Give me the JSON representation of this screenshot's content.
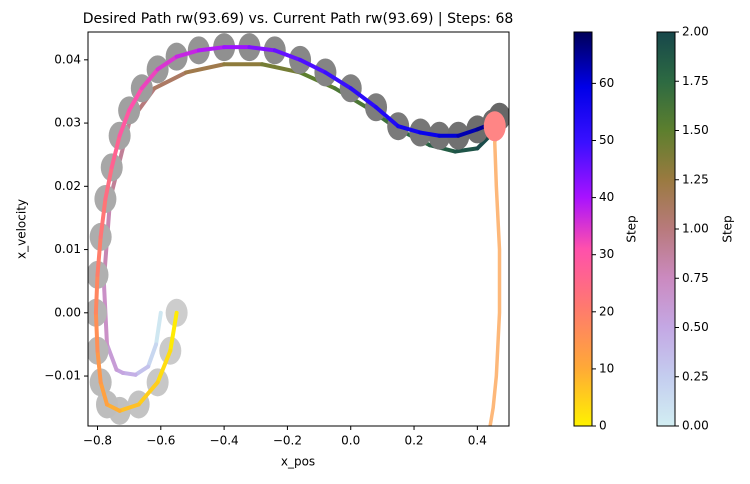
{
  "chart_data": {
    "type": "path",
    "title": "Desired Path rw(93.69) vs. Current Path rw(93.69) | Steps: 68",
    "x_label": "x_pos",
    "y_label": "x_velocity",
    "xlim": [
      -0.83,
      0.5
    ],
    "ylim": [
      -0.0179,
      0.0444
    ],
    "xticks": [
      {
        "value": -0.8,
        "label": "−0.8"
      },
      {
        "value": -0.6,
        "label": "−0.6"
      },
      {
        "value": -0.4,
        "label": "−0.4"
      },
      {
        "value": -0.2,
        "label": "−0.2"
      },
      {
        "value": 0.0,
        "label": "0.0"
      },
      {
        "value": 0.2,
        "label": "0.2"
      },
      {
        "value": 0.4,
        "label": "0.4"
      }
    ],
    "yticks": [
      {
        "value": -0.01,
        "label": "−0.01"
      },
      {
        "value": 0.0,
        "label": "0.00"
      },
      {
        "value": 0.01,
        "label": "0.01"
      },
      {
        "value": 0.02,
        "label": "0.02"
      },
      {
        "value": 0.03,
        "label": "0.03"
      },
      {
        "value": 0.04,
        "label": "0.04"
      }
    ],
    "series": [
      {
        "style": "colored-line",
        "colorbar": 1,
        "x": [
          -0.6,
          -0.615,
          -0.64,
          -0.68,
          -0.72,
          -0.74,
          -0.77,
          -0.78,
          -0.76,
          -0.7,
          -0.62,
          -0.52,
          -0.4,
          -0.28,
          -0.16,
          -0.05,
          0.05,
          0.15,
          0.25,
          0.33,
          0.4,
          0.47
        ],
        "y": [
          0.0,
          -0.005,
          -0.0085,
          -0.0098,
          -0.0095,
          -0.009,
          -0.005,
          0.005,
          0.018,
          0.03,
          0.0355,
          0.038,
          0.0393,
          0.0393,
          0.038,
          0.0355,
          0.0325,
          0.029,
          0.0265,
          0.0255,
          0.026,
          0.0295
        ],
        "c": [
          0,
          0.1,
          0.25,
          0.4,
          0.5,
          0.55,
          0.65,
          0.75,
          0.85,
          0.95,
          1.05,
          1.15,
          1.25,
          1.35,
          1.45,
          1.55,
          1.62,
          1.7,
          1.8,
          1.88,
          1.94,
          2
        ]
      },
      {
        "style": "circles",
        "colors": [
          "#cdcdcd",
          "#676767"
        ],
        "x": [
          -0.55,
          -0.57,
          -0.61,
          -0.67,
          -0.73,
          -0.77,
          -0.79,
          -0.8,
          -0.805,
          -0.8,
          -0.79,
          -0.775,
          -0.755,
          -0.73,
          -0.7,
          -0.66,
          -0.61,
          -0.55,
          -0.48,
          -0.4,
          -0.32,
          -0.24,
          -0.16,
          -0.08,
          0.0,
          0.08,
          0.15,
          0.22,
          0.28,
          0.34,
          0.4,
          0.45,
          0.47
        ],
        "y": [
          0.0,
          -0.006,
          -0.011,
          -0.0145,
          -0.0155,
          -0.0145,
          -0.011,
          -0.006,
          0.0,
          0.006,
          0.012,
          0.018,
          0.023,
          0.028,
          0.032,
          0.0355,
          0.0385,
          0.0405,
          0.0415,
          0.042,
          0.042,
          0.0415,
          0.04,
          0.038,
          0.0355,
          0.0325,
          0.0295,
          0.0285,
          0.028,
          0.028,
          0.029,
          0.03,
          0.031
        ]
      },
      {
        "style": "colored-line",
        "colorbar": 0,
        "x": [
          -0.55,
          -0.57,
          -0.61,
          -0.67,
          -0.73,
          -0.77,
          -0.79,
          -0.8,
          -0.805,
          -0.8,
          -0.79,
          -0.775,
          -0.755,
          -0.73,
          -0.7,
          -0.66,
          -0.61,
          -0.55,
          -0.48,
          -0.4,
          -0.32,
          -0.24,
          -0.16,
          -0.08,
          0.0,
          0.08,
          0.15,
          0.22,
          0.28,
          0.34,
          0.4,
          0.45,
          0.47
        ],
        "y": [
          0.0,
          -0.006,
          -0.011,
          -0.0145,
          -0.0155,
          -0.0145,
          -0.011,
          -0.006,
          0.0,
          0.006,
          0.012,
          0.018,
          0.023,
          0.028,
          0.032,
          0.0355,
          0.0385,
          0.0405,
          0.0415,
          0.042,
          0.042,
          0.0415,
          0.04,
          0.038,
          0.0355,
          0.0325,
          0.0295,
          0.0285,
          0.028,
          0.028,
          0.029,
          0.03,
          0.031
        ],
        "c": [
          0,
          2,
          4,
          6,
          8,
          11,
          13,
          15,
          17,
          19,
          21,
          23,
          25,
          28,
          30,
          32,
          34,
          36,
          38,
          40,
          42,
          45,
          47,
          49,
          51,
          53,
          55,
          57,
          59,
          62,
          64,
          66,
          68
        ]
      },
      {
        "style": "line",
        "color": "#fdb87a",
        "x": [
          0.47,
          0.455,
          0.46,
          0.47,
          0.47,
          0.46,
          0.45,
          0.44
        ],
        "y": [
          0.0295,
          0.027,
          0.02,
          0.01,
          0.0,
          -0.01,
          -0.015,
          -0.018
        ]
      },
      {
        "style": "marker",
        "color": "#ff8585",
        "x": [
          0.455
        ],
        "y": [
          0.0295
        ]
      }
    ],
    "colorbars": [
      {
        "label": "Step",
        "lim": [
          0,
          69
        ],
        "ticks": [
          0,
          10,
          20,
          30,
          40,
          50,
          60
        ],
        "stops": [
          [
            0,
            "#fff200"
          ],
          [
            0.15,
            "#ffa838"
          ],
          [
            0.3,
            "#ff7a6e"
          ],
          [
            0.45,
            "#ff50ac"
          ],
          [
            0.58,
            "#a812ff"
          ],
          [
            0.72,
            "#3a10ff"
          ],
          [
            0.86,
            "#0000e8"
          ],
          [
            1,
            "#000058"
          ]
        ]
      },
      {
        "label": "Step",
        "lim": [
          0,
          2
        ],
        "ticks": [
          {
            "value": 0,
            "label": "0.00"
          },
          {
            "value": 0.25,
            "label": "0.25"
          },
          {
            "value": 0.5,
            "label": "0.50"
          },
          {
            "value": 0.75,
            "label": "0.75"
          },
          {
            "value": 1,
            "label": "1.00"
          },
          {
            "value": 1.25,
            "label": "1.25"
          },
          {
            "value": 1.5,
            "label": "1.50"
          },
          {
            "value": 1.75,
            "label": "1.75"
          },
          {
            "value": 2,
            "label": "2.00"
          }
        ],
        "stops": [
          [
            0,
            "#d2eef2"
          ],
          [
            0.125,
            "#c4cdef"
          ],
          [
            0.25,
            "#c4a8e4"
          ],
          [
            0.375,
            "#cb8ac0"
          ],
          [
            0.5,
            "#b87a7c"
          ],
          [
            0.625,
            "#9a7a40"
          ],
          [
            0.75,
            "#5d7f2e"
          ],
          [
            0.875,
            "#2d6a42"
          ],
          [
            1,
            "#17474b"
          ]
        ]
      }
    ]
  }
}
